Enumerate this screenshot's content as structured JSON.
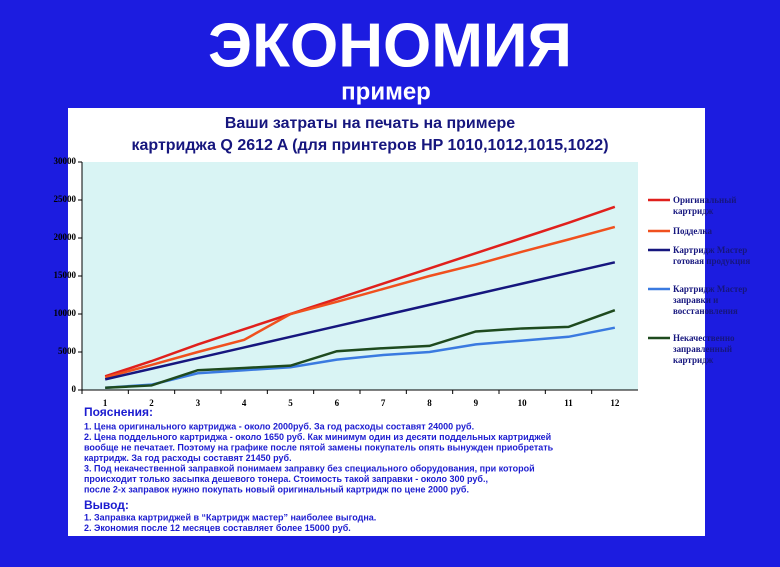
{
  "header": {
    "title": "ЭКОНОМИЯ",
    "subtitle": "пример"
  },
  "chart_data": {
    "type": "line",
    "title_lines": [
      "Ваши затраты на печать на примере",
      "картриджа Q 2612 A (для принтеров HP 1010,1012,1015,1022)"
    ],
    "categories": [
      "1",
      "2",
      "3",
      "4",
      "5",
      "6",
      "7",
      "8",
      "9",
      "10",
      "11",
      "12"
    ],
    "ylim": [
      0,
      30000
    ],
    "yticks": [
      0,
      5000,
      10000,
      15000,
      20000,
      25000,
      30000
    ],
    "series": [
      {
        "name": "Оригинальный картридж",
        "color": "#e0201c",
        "values": [
          1800,
          3800,
          6000,
          8000,
          10000,
          12000,
          14000,
          16000,
          18000,
          20000,
          22000,
          24100
        ]
      },
      {
        "name": "Подделка",
        "color": "#f0501e",
        "values": [
          1650,
          3300,
          5000,
          6600,
          10000,
          11600,
          13300,
          15000,
          16500,
          18200,
          19800,
          21450
        ]
      },
      {
        "name": "Картридж Мастер готовая продукция",
        "color": "#16167e",
        "values": [
          1400,
          2800,
          4200,
          5600,
          7000,
          8400,
          9800,
          11200,
          12600,
          14000,
          15400,
          16800
        ]
      },
      {
        "name": "Картридж Мастер заправки и восстановления",
        "color": "#3a7ae0",
        "values": [
          300,
          700,
          2200,
          2600,
          3000,
          4000,
          4600,
          5000,
          6000,
          6500,
          7000,
          8200
        ]
      },
      {
        "name": "Некачественно заправленный картридж",
        "color": "#1e4a1e",
        "values": [
          300,
          600,
          2600,
          2900,
          3200,
          5100,
          5500,
          5800,
          7700,
          8100,
          8300,
          10500
        ]
      }
    ]
  },
  "notes": {
    "heading": "Пояснения:",
    "lines": [
      "1. Цена оригинального картриджа - около 2000руб. За год расходы составят 24000 руб.",
      "2. Цена поддельного картриджа - около 1650 руб. Как минимум один из десяти поддельных картриджей",
      "вообще не печатает. Поэтому на графике после пятой замены покупатель опять вынужден приобретать",
      "картридж. За год расходы составят 21450 руб.",
      "3.  Под некачественной заправкой понимаем заправку без специального оборудования, при которой",
      "происходит только засыпка дешевого тонера. Стоимость такой заправки - около 300 руб.,",
      "после 2-х заправок нужно покупать новый оригинальный картридж по цене 2000 руб."
    ]
  },
  "conclusion": {
    "heading": "Вывод:",
    "lines": [
      "1. Заправка картриджей в “Картридж мастер” наиболее выгодна.",
      "2. Экономия после 12 месяцев составляет более 15000 руб."
    ]
  }
}
